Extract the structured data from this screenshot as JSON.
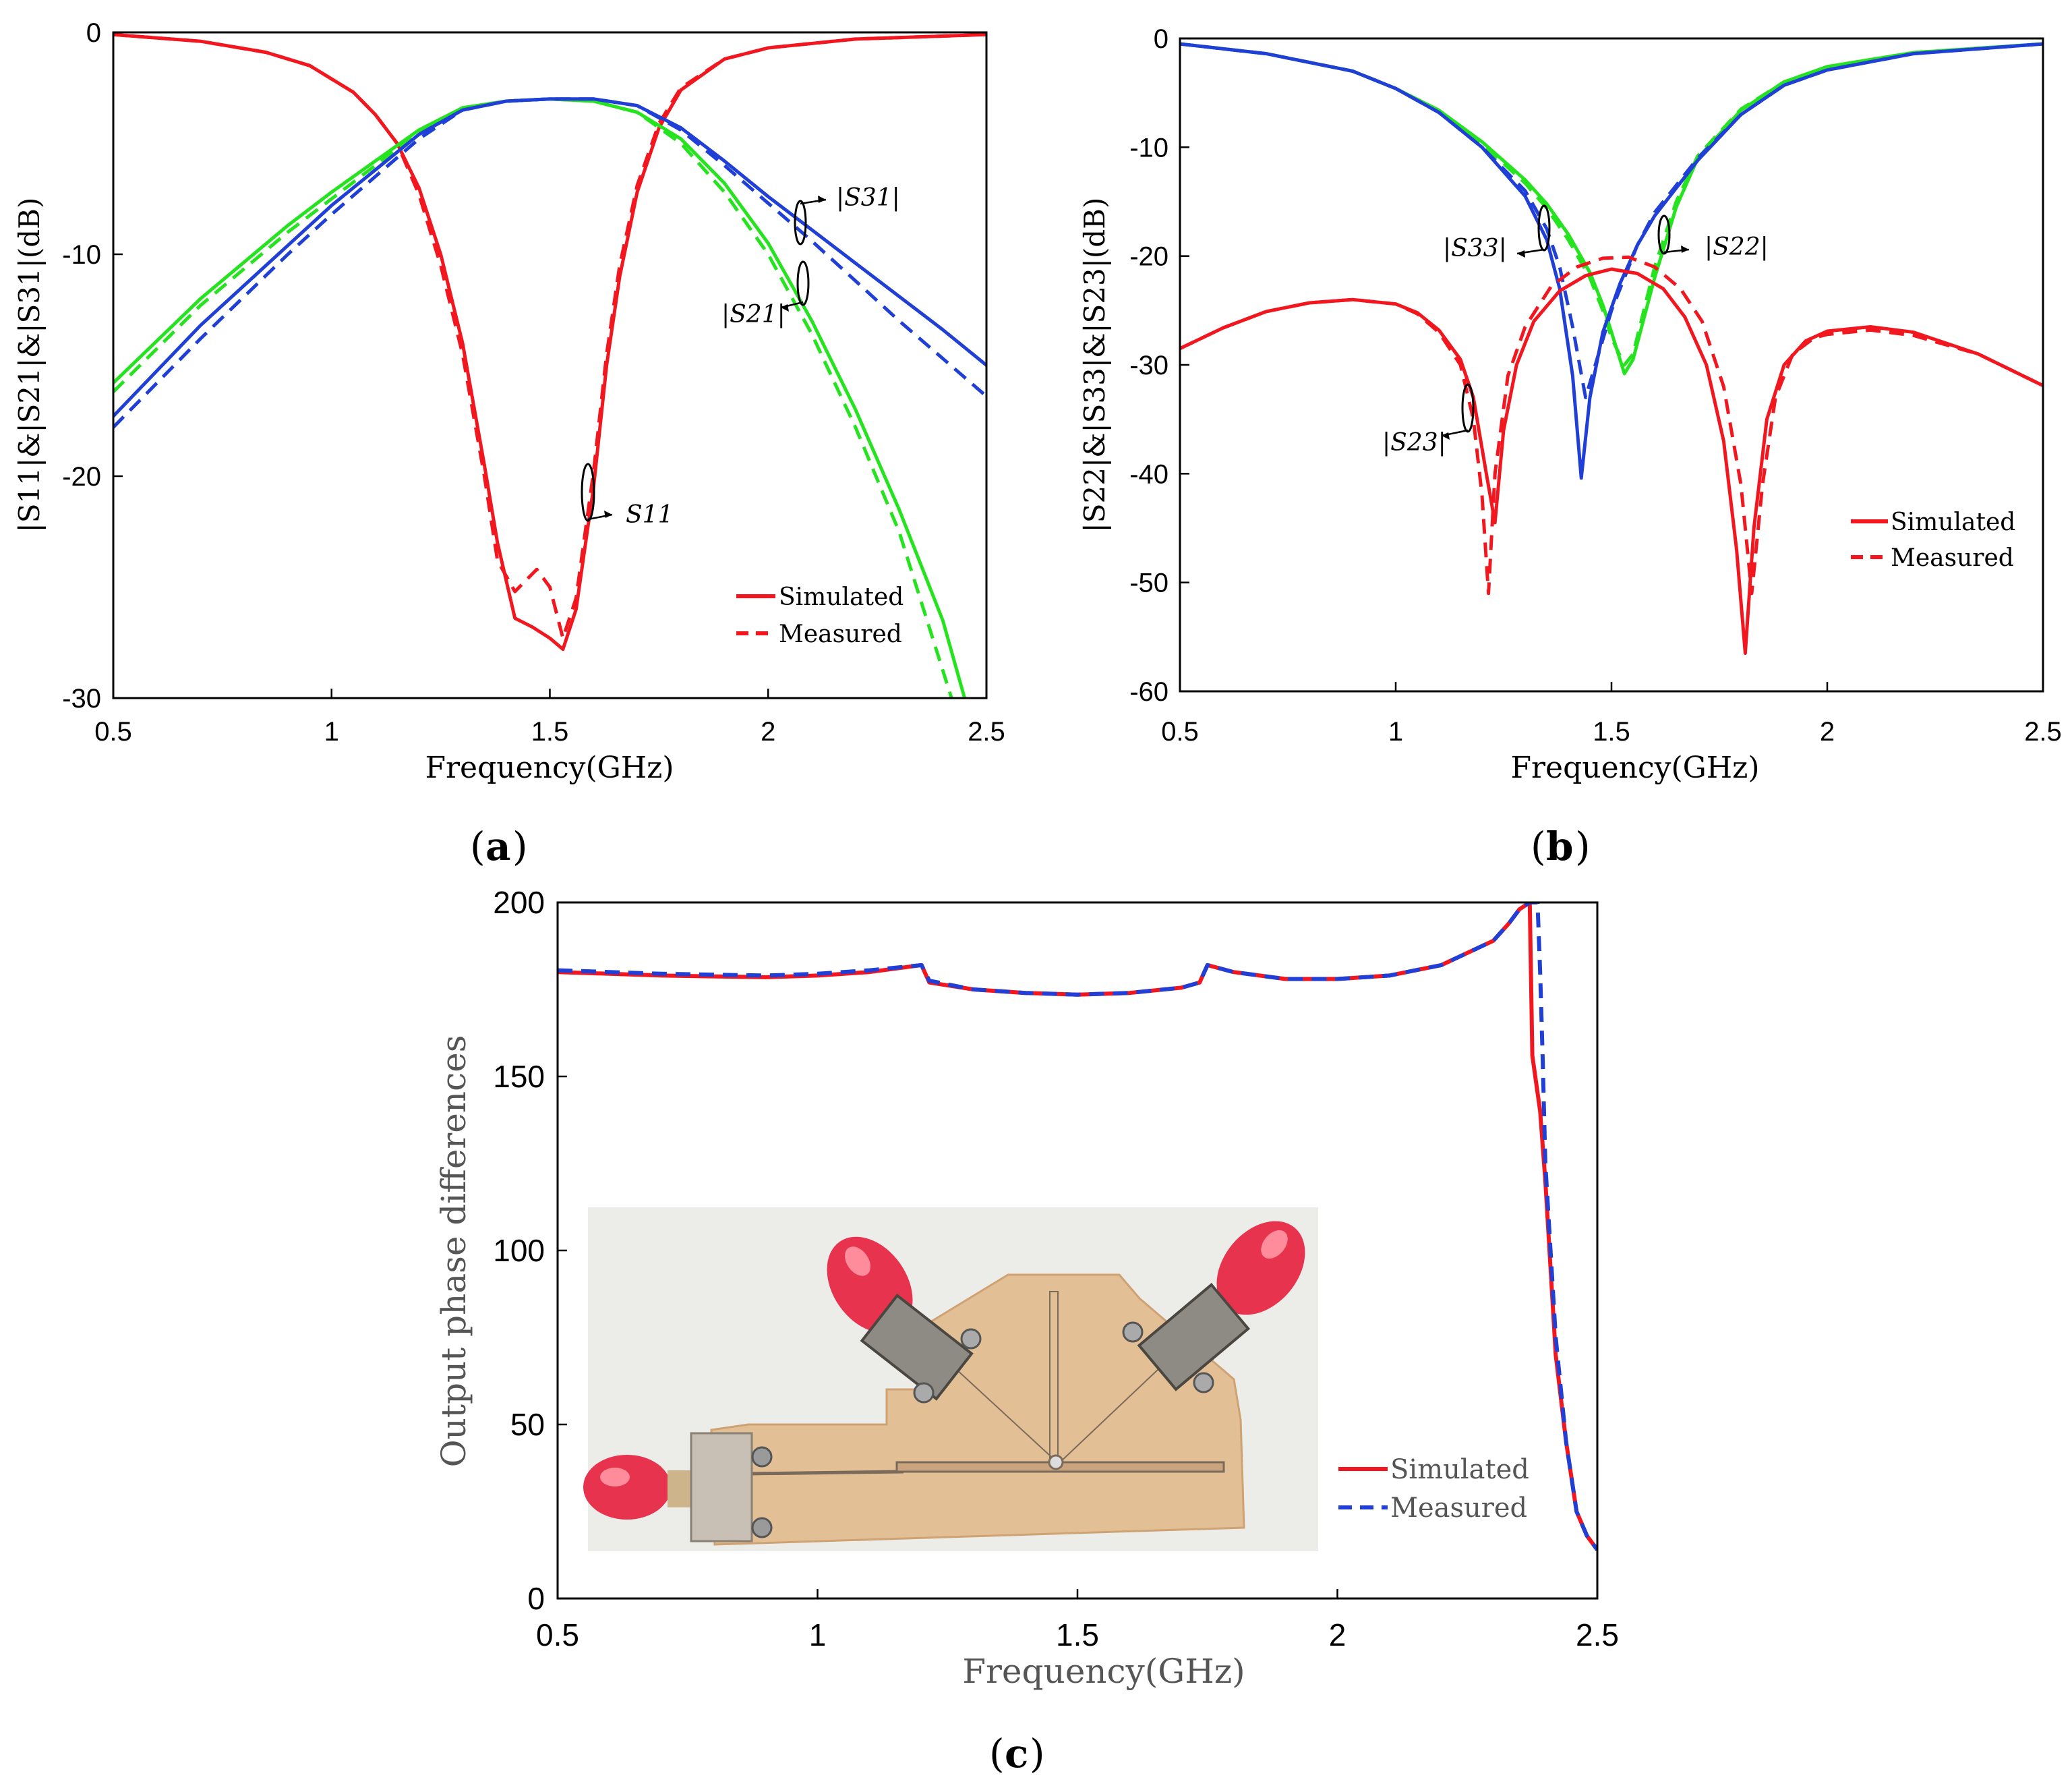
{
  "colors": {
    "red": "#f2161e",
    "green": "#26e31f",
    "blue": "#1f3fd6",
    "axis": "#000000",
    "label_gray": "#555555"
  },
  "legend": {
    "simulated": "Simulated",
    "measured": "Measured"
  },
  "chart_data": [
    {
      "id": "a",
      "type": "line",
      "panel_label": "(a)",
      "panel_letter": "a",
      "xlabel": "Frequency(GHz)",
      "ylabel": "|S11|&|S21|&|S31|(dB)",
      "xlim": [
        0.5,
        2.5
      ],
      "ylim": [
        -30,
        0
      ],
      "xticks": [
        0.5,
        1,
        1.5,
        2,
        2.5
      ],
      "yticks": [
        0,
        -10,
        -20,
        -30
      ],
      "xtick_labels": [
        "0.5",
        "1",
        "1.5",
        "2",
        "2.5"
      ],
      "ytick_labels": [
        "0",
        "-10",
        "-20",
        "-30"
      ],
      "annotations": [
        "S11",
        "|S31|",
        "|S21|"
      ],
      "series": [
        {
          "name": "S11 Simulated",
          "color": "red",
          "dash": false,
          "x": [
            0.5,
            0.7,
            0.85,
            0.95,
            1.05,
            1.1,
            1.15,
            1.2,
            1.25,
            1.3,
            1.35,
            1.38,
            1.42,
            1.46,
            1.5,
            1.53,
            1.56,
            1.6,
            1.63,
            1.66,
            1.7,
            1.75,
            1.8,
            1.9,
            2.0,
            2.2,
            2.5
          ],
          "y": [
            -0.1,
            -0.4,
            -0.9,
            -1.5,
            -2.7,
            -3.7,
            -5.0,
            -7.0,
            -10.0,
            -14.0,
            -19.5,
            -23.0,
            -26.4,
            -26.8,
            -27.3,
            -27.8,
            -26.0,
            -20.5,
            -15.0,
            -11.0,
            -7.2,
            -4.3,
            -2.6,
            -1.2,
            -0.7,
            -0.3,
            -0.1
          ]
        },
        {
          "name": "S11 Measured",
          "color": "red",
          "dash": true,
          "x": [
            0.5,
            0.7,
            0.85,
            0.95,
            1.05,
            1.1,
            1.15,
            1.2,
            1.25,
            1.3,
            1.35,
            1.38,
            1.42,
            1.44,
            1.47,
            1.5,
            1.53,
            1.56,
            1.6,
            1.63,
            1.66,
            1.7,
            1.75,
            1.8,
            1.9,
            2.0,
            2.2,
            2.5
          ],
          "y": [
            -0.1,
            -0.4,
            -0.9,
            -1.5,
            -2.7,
            -3.7,
            -5.0,
            -7.3,
            -10.5,
            -14.5,
            -20.0,
            -23.8,
            -25.2,
            -24.8,
            -24.2,
            -25.0,
            -27.3,
            -25.5,
            -19.8,
            -14.5,
            -10.5,
            -6.9,
            -4.1,
            -2.5,
            -1.2,
            -0.7,
            -0.3,
            -0.1
          ]
        },
        {
          "name": "S21 Simulated",
          "color": "green",
          "dash": false,
          "x": [
            0.5,
            0.7,
            0.9,
            1.0,
            1.1,
            1.2,
            1.3,
            1.4,
            1.5,
            1.6,
            1.7,
            1.8,
            1.9,
            2.0,
            2.1,
            2.2,
            2.3,
            2.4,
            2.45
          ],
          "y": [
            -15.8,
            -12.0,
            -8.7,
            -7.2,
            -5.8,
            -4.4,
            -3.4,
            -3.1,
            -3.0,
            -3.1,
            -3.6,
            -4.8,
            -6.8,
            -9.5,
            -13.0,
            -17.0,
            -21.5,
            -26.5,
            -30.0
          ]
        },
        {
          "name": "S21 Measured",
          "color": "green",
          "dash": true,
          "x": [
            0.5,
            0.7,
            0.9,
            1.0,
            1.1,
            1.2,
            1.3,
            1.4,
            1.5,
            1.6,
            1.7,
            1.8,
            1.9,
            2.0,
            2.1,
            2.2,
            2.3,
            2.42
          ],
          "y": [
            -16.2,
            -12.3,
            -9.0,
            -7.5,
            -6.0,
            -4.5,
            -3.4,
            -3.1,
            -3.0,
            -3.1,
            -3.6,
            -5.0,
            -7.2,
            -10.0,
            -13.6,
            -17.8,
            -22.5,
            -30.0
          ]
        },
        {
          "name": "S31 Simulated",
          "color": "blue",
          "dash": false,
          "x": [
            0.5,
            0.7,
            0.9,
            1.0,
            1.1,
            1.2,
            1.3,
            1.4,
            1.5,
            1.6,
            1.7,
            1.8,
            1.9,
            2.0,
            2.1,
            2.2,
            2.3,
            2.4,
            2.5
          ],
          "y": [
            -17.3,
            -13.2,
            -9.6,
            -7.8,
            -6.2,
            -4.6,
            -3.5,
            -3.1,
            -3.0,
            -3.0,
            -3.3,
            -4.3,
            -5.8,
            -7.4,
            -8.9,
            -10.4,
            -11.9,
            -13.4,
            -15.0
          ]
        },
        {
          "name": "S31 Measured",
          "color": "blue",
          "dash": true,
          "x": [
            0.5,
            0.7,
            0.9,
            1.0,
            1.1,
            1.2,
            1.3,
            1.4,
            1.5,
            1.6,
            1.7,
            1.8,
            1.9,
            2.0,
            2.1,
            2.2,
            2.3,
            2.4,
            2.5
          ],
          "y": [
            -17.8,
            -13.8,
            -10.0,
            -8.2,
            -6.5,
            -4.8,
            -3.5,
            -3.1,
            -3.0,
            -3.0,
            -3.3,
            -4.4,
            -6.0,
            -7.7,
            -9.4,
            -11.2,
            -13.0,
            -14.7,
            -16.4
          ]
        }
      ]
    },
    {
      "id": "b",
      "type": "line",
      "panel_label": "(b)",
      "panel_letter": "b",
      "xlabel": "Frequency(GHz)",
      "ylabel": "|S22|&|S33|&|S23|(dB)",
      "xlim": [
        0.5,
        2.5
      ],
      "ylim": [
        -60,
        0
      ],
      "xticks": [
        0.5,
        1,
        1.5,
        2,
        2.5
      ],
      "yticks": [
        0,
        -10,
        -20,
        -30,
        -40,
        -50,
        -60
      ],
      "xtick_labels": [
        "0.5",
        "1",
        "1.5",
        "2",
        "2.5"
      ],
      "ytick_labels": [
        "0",
        "-10",
        "-20",
        "-30",
        "-40",
        "-50",
        "-60"
      ],
      "annotations": [
        "|S33|",
        "|S22|",
        "|S23|"
      ],
      "series": [
        {
          "name": "S22 Simulated",
          "color": "green",
          "dash": false,
          "x": [
            0.5,
            0.7,
            0.9,
            1.0,
            1.1,
            1.2,
            1.3,
            1.35,
            1.4,
            1.45,
            1.48,
            1.5,
            1.53,
            1.55,
            1.6,
            1.65,
            1.7,
            1.8,
            1.9,
            2.0,
            2.2,
            2.5
          ],
          "y": [
            -0.5,
            -1.4,
            -3.0,
            -4.6,
            -6.6,
            -9.5,
            -13.0,
            -15.2,
            -18.0,
            -21.5,
            -24.5,
            -27.0,
            -30.8,
            -29.5,
            -22.0,
            -15.5,
            -11.0,
            -6.6,
            -4.0,
            -2.6,
            -1.3,
            -0.5
          ]
        },
        {
          "name": "S22 Measured",
          "color": "green",
          "dash": true,
          "x": [
            0.5,
            0.7,
            0.9,
            1.0,
            1.1,
            1.2,
            1.3,
            1.35,
            1.4,
            1.45,
            1.48,
            1.5,
            1.53,
            1.55,
            1.6,
            1.65,
            1.7,
            1.8,
            1.9,
            2.0,
            2.2,
            2.5
          ],
          "y": [
            -0.5,
            -1.4,
            -3.0,
            -4.6,
            -6.6,
            -9.7,
            -13.3,
            -15.6,
            -18.5,
            -22.0,
            -25.0,
            -27.5,
            -30.0,
            -29.0,
            -21.0,
            -15.0,
            -10.8,
            -6.5,
            -4.0,
            -2.6,
            -1.3,
            -0.5
          ]
        },
        {
          "name": "S33 Simulated",
          "color": "blue",
          "dash": false,
          "x": [
            0.5,
            0.7,
            0.9,
            1.0,
            1.1,
            1.2,
            1.3,
            1.35,
            1.38,
            1.41,
            1.43,
            1.45,
            1.48,
            1.52,
            1.56,
            1.6,
            1.7,
            1.8,
            1.9,
            2.0,
            2.2,
            2.5
          ],
          "y": [
            -0.5,
            -1.4,
            -3.0,
            -4.6,
            -6.8,
            -10.0,
            -14.5,
            -18.5,
            -23.0,
            -31.0,
            -40.4,
            -33.0,
            -27.0,
            -22.5,
            -19.0,
            -16.3,
            -11.2,
            -7.0,
            -4.3,
            -2.9,
            -1.4,
            -0.5
          ]
        },
        {
          "name": "S33 Measured",
          "color": "blue",
          "dash": true,
          "x": [
            0.5,
            0.7,
            0.9,
            1.0,
            1.1,
            1.2,
            1.3,
            1.35,
            1.38,
            1.41,
            1.44,
            1.47,
            1.5,
            1.53,
            1.56,
            1.6,
            1.7,
            1.8,
            1.9,
            2.0,
            2.2,
            2.5
          ],
          "y": [
            -0.5,
            -1.4,
            -3.0,
            -4.6,
            -6.8,
            -10.0,
            -14.0,
            -17.5,
            -21.0,
            -26.5,
            -33.0,
            -29.0,
            -25.0,
            -22.0,
            -19.0,
            -16.0,
            -11.0,
            -7.0,
            -4.3,
            -2.9,
            -1.4,
            -0.5
          ]
        },
        {
          "name": "S23 Simulated",
          "color": "red",
          "dash": false,
          "x": [
            0.5,
            0.6,
            0.7,
            0.8,
            0.9,
            1.0,
            1.05,
            1.1,
            1.15,
            1.18,
            1.21,
            1.23,
            1.25,
            1.28,
            1.32,
            1.38,
            1.44,
            1.5,
            1.56,
            1.62,
            1.67,
            1.72,
            1.76,
            1.79,
            1.81,
            1.83,
            1.86,
            1.9,
            1.95,
            2.0,
            2.1,
            2.2,
            2.35,
            2.5
          ],
          "y": [
            -28.5,
            -26.6,
            -25.1,
            -24.3,
            -24.0,
            -24.4,
            -25.2,
            -26.8,
            -29.5,
            -33.0,
            -40.0,
            -44.5,
            -36.0,
            -30.0,
            -26.0,
            -23.2,
            -21.8,
            -21.2,
            -21.6,
            -23.0,
            -25.6,
            -30.0,
            -37.0,
            -47.0,
            -56.5,
            -45.0,
            -35.0,
            -30.0,
            -27.8,
            -26.9,
            -26.5,
            -27.0,
            -29.0,
            -31.9
          ]
        },
        {
          "name": "S23 Measured",
          "color": "red",
          "dash": true,
          "x": [
            0.5,
            0.6,
            0.7,
            0.8,
            0.9,
            1.0,
            1.05,
            1.1,
            1.15,
            1.18,
            1.2,
            1.215,
            1.23,
            1.26,
            1.3,
            1.36,
            1.42,
            1.48,
            1.54,
            1.6,
            1.66,
            1.71,
            1.76,
            1.8,
            1.825,
            1.85,
            1.88,
            1.92,
            1.97,
            2.0,
            2.1,
            2.2,
            2.35,
            2.5
          ],
          "y": [
            -28.5,
            -26.6,
            -25.1,
            -24.3,
            -24.0,
            -24.4,
            -25.3,
            -27.0,
            -30.0,
            -35.0,
            -42.0,
            -51.0,
            -40.0,
            -31.0,
            -26.5,
            -22.8,
            -21.0,
            -20.2,
            -20.1,
            -21.0,
            -23.0,
            -26.0,
            -32.0,
            -41.0,
            -51.0,
            -41.0,
            -33.0,
            -29.0,
            -27.5,
            -27.2,
            -26.8,
            -27.3,
            -29.0,
            -31.9
          ]
        }
      ]
    },
    {
      "id": "c",
      "type": "line",
      "panel_label": "(c)",
      "panel_letter": "c",
      "xlabel": "Frequency(GHz)",
      "ylabel": "Output  phase differences",
      "xlim": [
        0.5,
        2.5
      ],
      "ylim": [
        0,
        200
      ],
      "xticks": [
        0.5,
        1,
        1.5,
        2,
        2.5
      ],
      "yticks": [
        0,
        50,
        100,
        150,
        200
      ],
      "xtick_labels": [
        "0.5",
        "1",
        "1.5",
        "2",
        "2.5"
      ],
      "ytick_labels": [
        "0",
        "50",
        "100",
        "150",
        "200"
      ],
      "series": [
        {
          "name": "Simulated",
          "color": "red",
          "dash": false,
          "x": [
            0.5,
            0.7,
            0.9,
            1.0,
            1.1,
            1.2,
            1.215,
            1.3,
            1.4,
            1.5,
            1.6,
            1.7,
            1.735,
            1.75,
            1.8,
            1.9,
            2.0,
            2.1,
            2.2,
            2.3,
            2.33,
            2.35,
            2.37,
            2.375,
            2.39,
            2.4,
            2.41,
            2.42,
            2.44,
            2.46,
            2.48,
            2.5
          ],
          "y": [
            180,
            179,
            178.5,
            179,
            180,
            182,
            177,
            175,
            174,
            173.5,
            174,
            175.5,
            177,
            182,
            180,
            178,
            178,
            179,
            182,
            189,
            194,
            198,
            200,
            156,
            140,
            120,
            95,
            70,
            45,
            25,
            18,
            14
          ]
        },
        {
          "name": "Measured",
          "color": "blue",
          "dash": true,
          "x": [
            0.5,
            0.7,
            0.9,
            1.0,
            1.1,
            1.2,
            1.215,
            1.3,
            1.4,
            1.5,
            1.6,
            1.7,
            1.735,
            1.75,
            1.8,
            1.9,
            2.0,
            2.1,
            2.2,
            2.3,
            2.33,
            2.35,
            2.37,
            2.385,
            2.39,
            2.395,
            2.4,
            2.41,
            2.42,
            2.44,
            2.46,
            2.48,
            2.5
          ],
          "y": [
            180.5,
            179.5,
            179,
            179.5,
            180.5,
            182,
            177.5,
            175,
            174,
            173.5,
            174,
            175.5,
            177,
            182,
            180,
            178,
            178,
            179,
            182,
            189,
            194,
            198,
            200,
            200,
            180,
            155,
            125,
            100,
            75,
            45,
            25,
            18,
            14
          ]
        }
      ],
      "legend_entries": [
        "Simulated",
        "Measured"
      ],
      "inset": "photo of the fabricated three-port power divider board with SMA connectors"
    }
  ]
}
